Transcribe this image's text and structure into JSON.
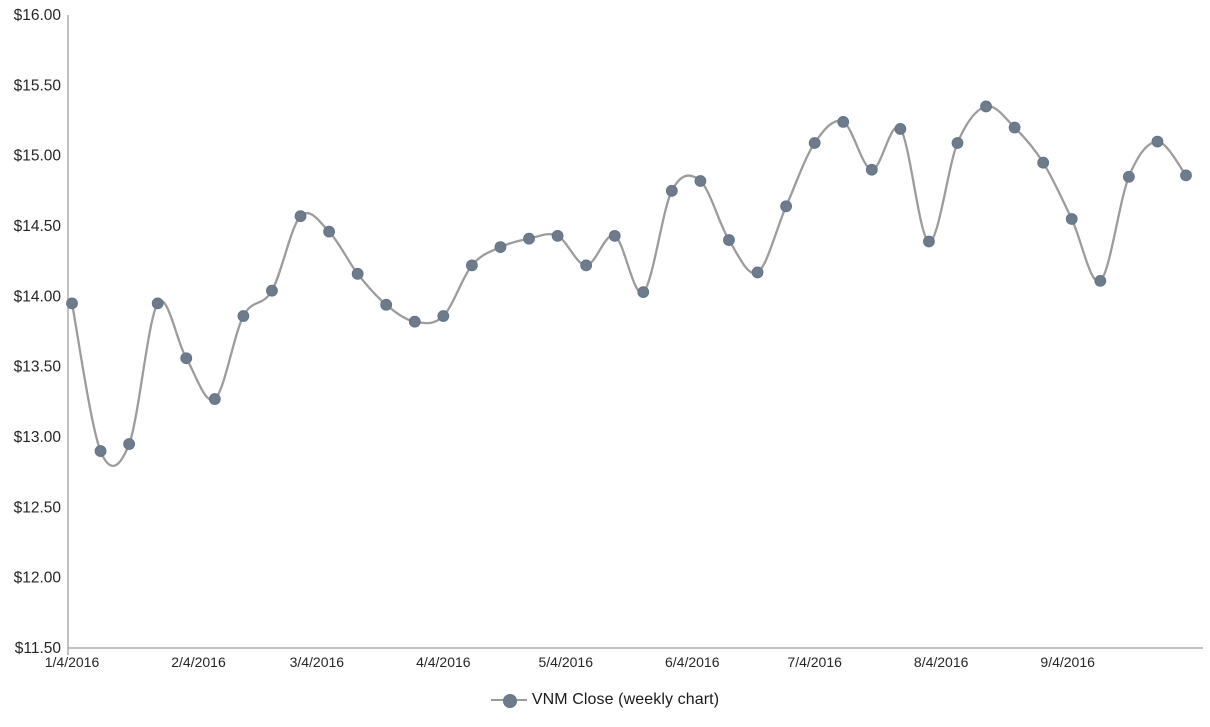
{
  "chart_data": {
    "type": "line",
    "title": "",
    "legend": "VNM Close (weekly chart)",
    "legend_position": "bottom-center",
    "smooth": true,
    "grid": "off",
    "x": [
      "1/4/2016",
      "1/11/2016",
      "1/18/2016",
      "1/25/2016",
      "2/1/2016",
      "2/8/2016",
      "2/15/2016",
      "2/22/2016",
      "2/29/2016",
      "3/7/2016",
      "3/14/2016",
      "3/21/2016",
      "3/28/2016",
      "4/4/2016",
      "4/11/2016",
      "4/18/2016",
      "4/25/2016",
      "5/2/2016",
      "5/9/2016",
      "5/16/2016",
      "5/23/2016",
      "5/30/2016",
      "6/6/2016",
      "6/13/2016",
      "6/20/2016",
      "6/27/2016",
      "7/4/2016",
      "7/11/2016",
      "7/18/2016",
      "7/25/2016",
      "8/1/2016",
      "8/8/2016",
      "8/15/2016",
      "8/22/2016",
      "8/29/2016",
      "9/5/2016",
      "9/12/2016",
      "9/19/2016",
      "9/26/2016",
      "10/3/2016"
    ],
    "series": [
      {
        "name": "VNM Close (weekly chart)",
        "values": [
          13.95,
          12.9,
          12.95,
          13.95,
          13.56,
          13.27,
          13.86,
          14.04,
          14.57,
          14.46,
          14.16,
          13.94,
          13.82,
          13.86,
          14.22,
          14.35,
          14.41,
          14.43,
          14.22,
          14.43,
          14.03,
          14.75,
          14.82,
          14.4,
          14.17,
          14.64,
          15.09,
          15.24,
          14.9,
          15.19,
          14.39,
          15.09,
          15.35,
          15.2,
          14.95,
          14.55,
          14.11,
          14.85,
          15.1,
          14.86
        ]
      }
    ],
    "x_tick_labels": [
      "1/4/2016",
      "2/4/2016",
      "3/4/2016",
      "4/4/2016",
      "5/4/2016",
      "6/4/2016",
      "7/4/2016",
      "8/4/2016",
      "9/4/2016"
    ],
    "y_tick_labels": [
      "$16.00",
      "$15.50",
      "$15.00",
      "$14.50",
      "$14.00",
      "$13.50",
      "$13.00",
      "$12.50",
      "$12.00",
      "$11.50"
    ],
    "y_tick_values": [
      16.0,
      15.5,
      15.0,
      14.5,
      14.0,
      13.5,
      13.0,
      12.5,
      12.0,
      11.5
    ],
    "ylim": [
      11.5,
      16.0
    ],
    "colors": {
      "line": "#9c9c9c",
      "marker_fill": "#6e7b8a",
      "marker_stroke": "#64748a",
      "axis": "#9d9d9d",
      "tick_text": "#262626",
      "legend_text": "#1a1a1a",
      "background": "#ffffff"
    }
  }
}
